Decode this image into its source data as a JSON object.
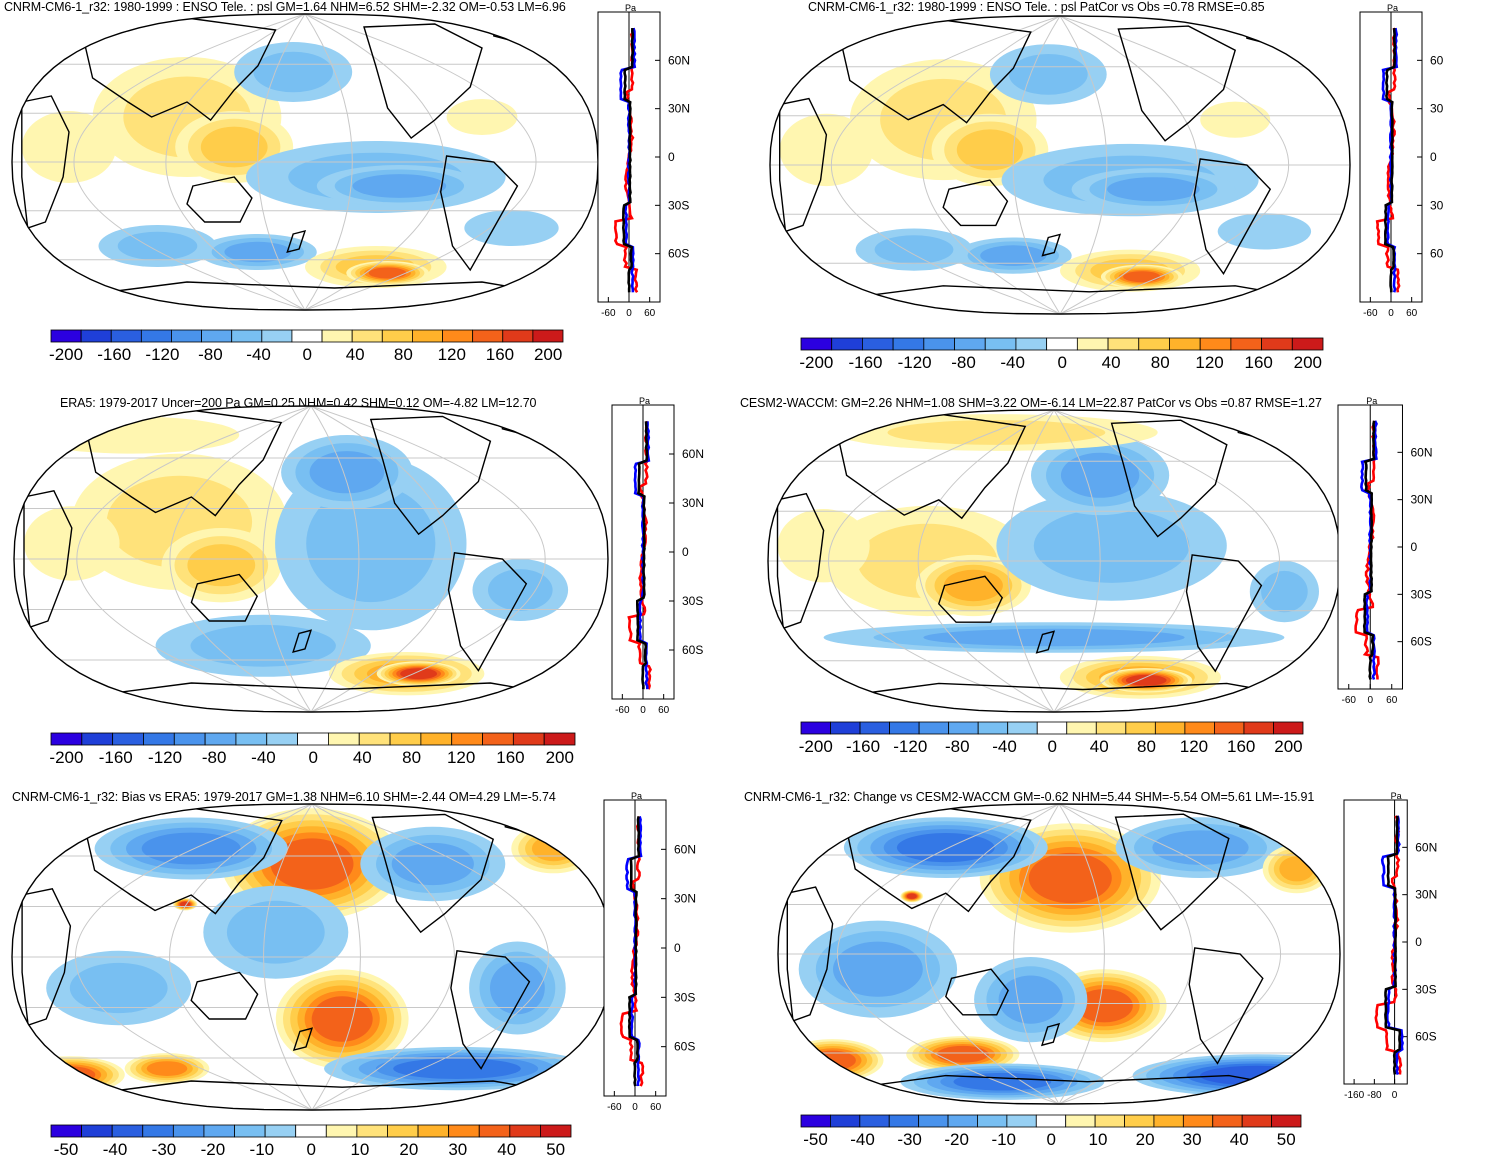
{
  "colors": {
    "scale": [
      "#2b00e0",
      "#1f3fd8",
      "#2a5fe0",
      "#3478e6",
      "#4a93ec",
      "#5fa8f0",
      "#78bff2",
      "#97d0f3",
      "#ffffff",
      "#fff6b0",
      "#ffe27a",
      "#ffcd4a",
      "#ffb22a",
      "#ff8a1a",
      "#f3621a",
      "#e03a1a",
      "#cc1a1a"
    ],
    "zonal_model": "#0000ff",
    "zonal_obs": "#ff0000",
    "zonal_ref": "#000000",
    "land_outline": "#000000",
    "grid": "#c8c8c8"
  },
  "chart_data": [
    {
      "type": "heatmap",
      "panel": "top-left",
      "title": "CNRM-CM6-1_r32: 1980-1999 : ENSO Tele. : psl GM=1.64 NHM=6.52 SHM=-2.32 OM=-0.53 LM=6.96",
      "colorbar_ticks": [
        "-200",
        "-160",
        "-120",
        "-80",
        "-40",
        "0",
        "40",
        "80",
        "120",
        "160",
        "200"
      ],
      "range": [
        -200,
        200
      ],
      "pattern": "enso_model",
      "profile": {
        "unit": "Pa",
        "xticks": [
          "-60",
          "0",
          "60"
        ],
        "xlim": [
          -90,
          90
        ],
        "lat_ticks": [
          "60N",
          "30N",
          "0",
          "30S",
          "60S"
        ],
        "lat_values": [
          60,
          30,
          0,
          -30,
          -60
        ]
      }
    },
    {
      "type": "heatmap",
      "panel": "top-right",
      "title": "CNRM-CM6-1_r32: 1980-1999 : ENSO Tele. : psl PatCor vs Obs =0.78 RMSE=0.85",
      "colorbar_ticks": [
        "-200",
        "-160",
        "-120",
        "-80",
        "-40",
        "0",
        "40",
        "80",
        "120",
        "160",
        "200"
      ],
      "range": [
        -200,
        200
      ],
      "pattern": "enso_model",
      "profile": {
        "unit": "Pa",
        "xticks": [
          "-60",
          "0",
          "60"
        ],
        "xlim": [
          -90,
          90
        ],
        "lat_ticks": [
          "60",
          "30",
          "0",
          "30",
          "60"
        ],
        "lat_values": [
          60,
          30,
          0,
          -30,
          -60
        ]
      }
    },
    {
      "type": "heatmap",
      "panel": "middle-left",
      "title": "ERA5: 1979-2017 Uncer=200 Pa GM=0.25 NHM=0.42 SHM=0.12 OM=-4.82 LM=12.70",
      "colorbar_ticks": [
        "-200",
        "-160",
        "-120",
        "-80",
        "-40",
        "0",
        "40",
        "80",
        "120",
        "160",
        "200"
      ],
      "range": [
        -200,
        200
      ],
      "pattern": "enso_obs",
      "profile": {
        "unit": "Pa",
        "xticks": [
          "-60",
          "0",
          "60"
        ],
        "xlim": [
          -90,
          90
        ],
        "lat_ticks": [
          "60N",
          "30N",
          "0",
          "30S",
          "60S"
        ],
        "lat_values": [
          60,
          30,
          0,
          -30,
          -60
        ]
      }
    },
    {
      "type": "heatmap",
      "panel": "middle-right",
      "title": "CESM2-WACCM: GM=2.26 NHM=1.08 SHM=3.22 OM=-6.14 LM=22.87 PatCor vs Obs =0.87 RMSE=1.27",
      "colorbar_ticks": [
        "-200",
        "-160",
        "-120",
        "-80",
        "-40",
        "0",
        "40",
        "80",
        "120",
        "160",
        "200"
      ],
      "range": [
        -200,
        200
      ],
      "pattern": "enso_cesm",
      "profile": {
        "unit": "Pa",
        "xticks": [
          "-60",
          "0",
          "60"
        ],
        "xlim": [
          -90,
          90
        ],
        "lat_ticks": [
          "60N",
          "30N",
          "0",
          "30S",
          "60S"
        ],
        "lat_values": [
          60,
          30,
          0,
          -30,
          -60
        ]
      }
    },
    {
      "type": "heatmap",
      "panel": "bottom-left",
      "title": "CNRM-CM6-1_r32: Bias vs ERA5: 1979-2017 GM=1.38 NHM=6.10 SHM=-2.44 OM=4.29 LM=-5.74",
      "colorbar_ticks": [
        "-50",
        "-40",
        "-30",
        "-20",
        "-10",
        "0",
        "10",
        "20",
        "30",
        "40",
        "50"
      ],
      "range": [
        -50,
        50
      ],
      "pattern": "bias",
      "profile": {
        "unit": "Pa",
        "xticks": [
          "-60",
          "0",
          "60"
        ],
        "xlim": [
          -90,
          90
        ],
        "lat_ticks": [
          "60N",
          "30N",
          "0",
          "30S",
          "60S"
        ],
        "lat_values": [
          60,
          30,
          0,
          -30,
          -60
        ]
      }
    },
    {
      "type": "heatmap",
      "panel": "bottom-right",
      "title": "CNRM-CM6-1_r32: Change vs CESM2-WACCM GM=-0.62 NHM=5.44 SHM=-5.54 OM=5.61 LM=-15.91",
      "colorbar_ticks": [
        "-50",
        "-40",
        "-30",
        "-20",
        "-10",
        "0",
        "10",
        "20",
        "30",
        "40",
        "50"
      ],
      "range": [
        -50,
        50
      ],
      "pattern": "change",
      "profile": {
        "unit": "Pa",
        "xticks": [
          "-160",
          "-80",
          "0"
        ],
        "xlim": [
          -200,
          50
        ],
        "lat_ticks": [
          "60N",
          "30N",
          "0",
          "30S",
          "60S"
        ],
        "lat_values": [
          60,
          30,
          0,
          -30,
          -60
        ]
      }
    }
  ]
}
